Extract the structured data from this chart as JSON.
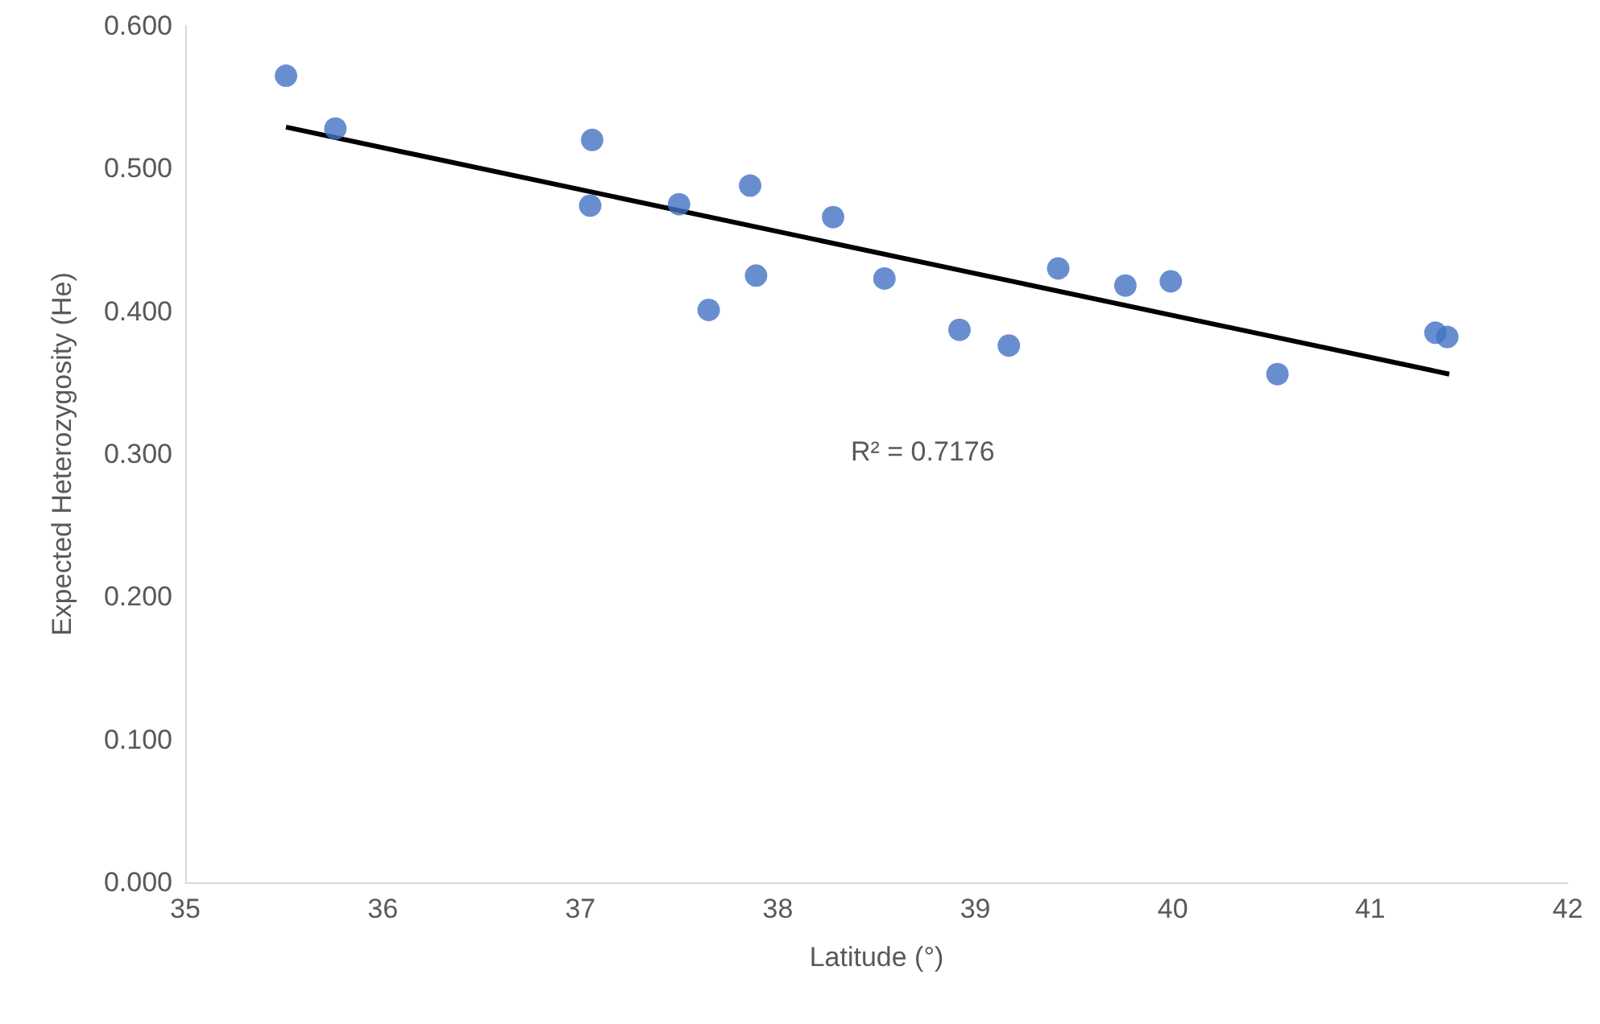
{
  "chart_data": {
    "type": "scatter",
    "xlabel": "Latitude (°)",
    "ylabel": "Expected Heterozygosity (He)",
    "xlim": [
      35,
      42
    ],
    "xticks": [
      35,
      36,
      37,
      38,
      39,
      40,
      41,
      42
    ],
    "ylim": [
      0,
      0.6
    ],
    "yticks": [
      {
        "value": 0,
        "label": "0.000"
      },
      {
        "value": 0.1,
        "label": "0.100"
      },
      {
        "value": 0.2,
        "label": "0.200"
      },
      {
        "value": 0.3,
        "label": "0.300"
      },
      {
        "value": 0.4,
        "label": "0.400"
      },
      {
        "value": 0.5,
        "label": "0.500"
      },
      {
        "value": 0.6,
        "label": "0.600"
      }
    ],
    "grid": false,
    "marker": "circle",
    "annotations": [
      "R² = 0.7176"
    ],
    "series": [
      {
        "type": "scatter",
        "color": "#4472c4",
        "x": [
          35.51,
          35.76,
          37.06,
          37.05,
          37.5,
          37.86,
          37.65,
          37.89,
          38.28,
          38.54,
          38.92,
          39.17,
          39.42,
          39.76,
          39.99,
          40.53,
          41.33,
          41.39
        ],
        "values": [
          0.565,
          0.528,
          0.52,
          0.474,
          0.475,
          0.488,
          0.401,
          0.425,
          0.466,
          0.423,
          0.387,
          0.376,
          0.43,
          0.418,
          0.421,
          0.356,
          0.385,
          0.382
        ]
      },
      {
        "type": "line",
        "color": "#000000",
        "marker": "none",
        "line_style": "solid",
        "x": [
          35.51,
          41.4
        ],
        "values": [
          0.529,
          0.356
        ]
      }
    ]
  }
}
